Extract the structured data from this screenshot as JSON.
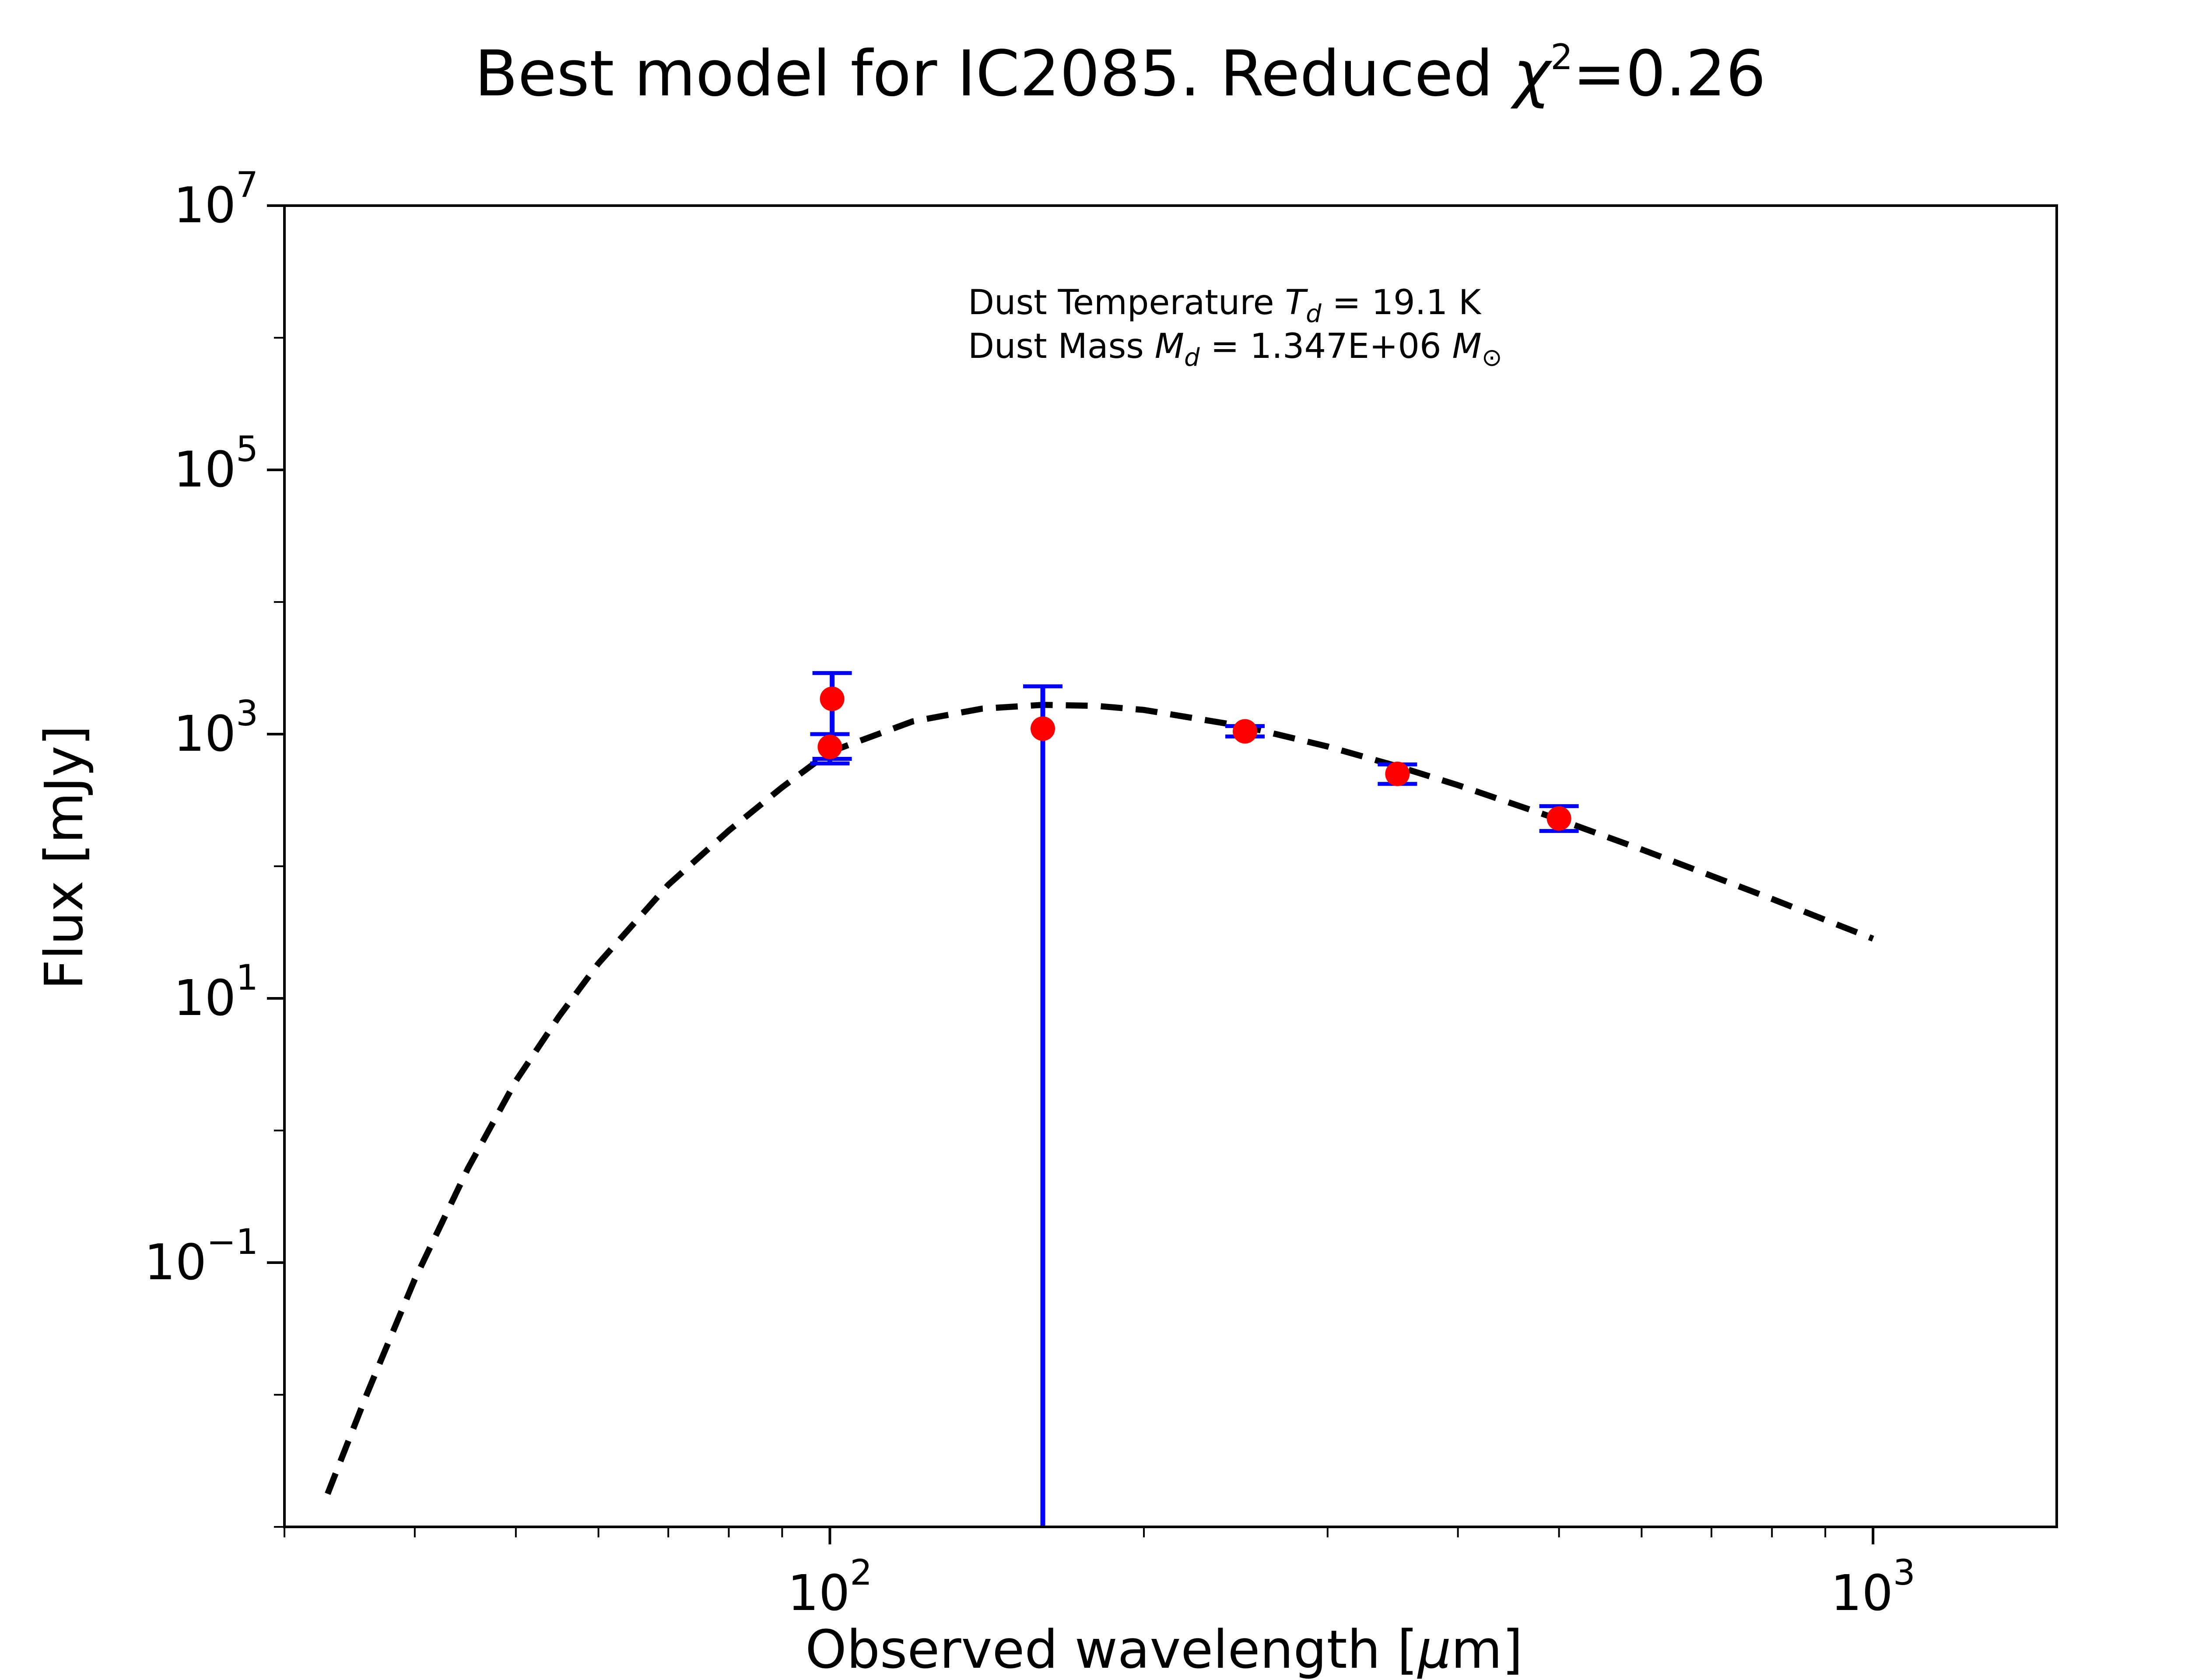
{
  "chart_data": {
    "type": "scatter",
    "title": "Best model for IC2085. Reduced χ²=0.26",
    "title_parts": {
      "prefix": "Best model for IC2085. Reduced ",
      "symbol": "χ",
      "sup": "2",
      "suffix": "=0.26"
    },
    "xlabel": "Observed wavelength [μm]",
    "xlabel_parts": {
      "prefix": "Observed wavelength [",
      "mu": "μ",
      "suffix": "m]"
    },
    "ylabel": "Flux [mJy]",
    "x_scale": "log",
    "y_scale": "log",
    "xlim": [
      30,
      1500
    ],
    "ylim": [
      0.001,
      10000000
    ],
    "x_ticks": [
      {
        "value": 100,
        "base": "10",
        "exp": "2"
      },
      {
        "value": 1000,
        "base": "10",
        "exp": "3"
      }
    ],
    "y_ticks": [
      {
        "value": 0.1,
        "base": "10",
        "exp": "−1"
      },
      {
        "value": 10,
        "base": "10",
        "exp": "1"
      },
      {
        "value": 1000,
        "base": "10",
        "exp": "3"
      },
      {
        "value": 100000,
        "base": "10",
        "exp": "5"
      },
      {
        "value": 10000000,
        "base": "10",
        "exp": "7"
      }
    ],
    "grid": false,
    "legend": "none",
    "annotations": [
      {
        "prefix": "Dust Temperature ",
        "var": "T",
        "sub": "d",
        "value": " = 19.1 K",
        "unit": ""
      },
      {
        "prefix": "Dust Mass ",
        "var": "M",
        "sub": "d",
        "value": " = 1.347E+06 ",
        "unit": "M",
        "unit_sub": "⊙"
      }
    ],
    "series": [
      {
        "type": "errorbar",
        "color": "#ff0000",
        "errorbar_color": "#0000ff",
        "points": [
          {
            "x": 100,
            "y": 800,
            "yerr_low": 600,
            "yerr_high": 1000
          },
          {
            "x": 100.5,
            "y": 1850,
            "yerr_low": 650,
            "yerr_high": 2900
          },
          {
            "x": 160,
            "y": 1100,
            "yerr_low": 0.001,
            "yerr_high": 2300
          },
          {
            "x": 250,
            "y": 1050,
            "yerr_low": 960,
            "yerr_high": 1150
          },
          {
            "x": 350,
            "y": 500,
            "yerr_low": 420,
            "yerr_high": 590
          },
          {
            "x": 500,
            "y": 230,
            "yerr_low": 185,
            "yerr_high": 285
          }
        ]
      },
      {
        "type": "line",
        "style": "dashed",
        "color": "#000000",
        "x": [
          33,
          36,
          40,
          45,
          50,
          55,
          60,
          70,
          80,
          90,
          100,
          120,
          140,
          160,
          180,
          200,
          250,
          300,
          350,
          400,
          500,
          600,
          700,
          800,
          1000
        ],
        "y": [
          0.00178,
          0.0102,
          0.0747,
          0.52,
          2.37,
          7.3,
          18.4,
          72.4,
          186,
          396,
          734,
          1247,
          1560,
          1665,
          1637,
          1525,
          1140,
          806,
          571,
          411,
          226,
          134,
          84.6,
          56.6,
          28.3
        ]
      }
    ]
  }
}
